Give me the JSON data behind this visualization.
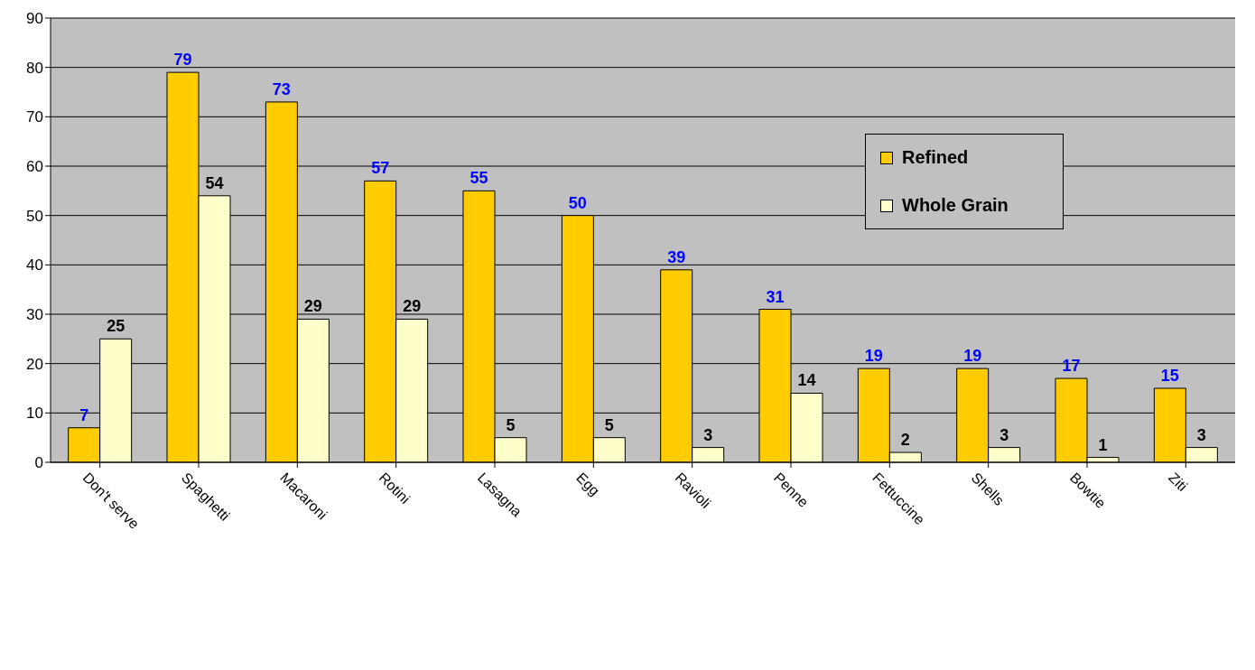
{
  "chart_data": {
    "type": "bar",
    "categories": [
      "Don't serve",
      "Spaghetti",
      "Macaroni",
      "Rotini",
      "Lasagna",
      "Egg",
      "Ravioli",
      "Penne",
      "Fettuccine",
      "Shells",
      "Bowtie",
      "Ziti"
    ],
    "series": [
      {
        "name": "Refined",
        "color": "#ffcc00",
        "values": [
          7,
          79,
          73,
          57,
          55,
          50,
          39,
          31,
          19,
          19,
          17,
          15
        ]
      },
      {
        "name": "Whole Grain",
        "color": "#ffffcc",
        "values": [
          25,
          54,
          29,
          29,
          5,
          5,
          3,
          14,
          2,
          3,
          1,
          3
        ]
      }
    ],
    "ylim": [
      0,
      90
    ],
    "yticks": [
      0,
      10,
      20,
      30,
      40,
      50,
      60,
      70,
      80,
      90
    ],
    "grid": "y",
    "legend": "top right",
    "data_labels": true
  }
}
